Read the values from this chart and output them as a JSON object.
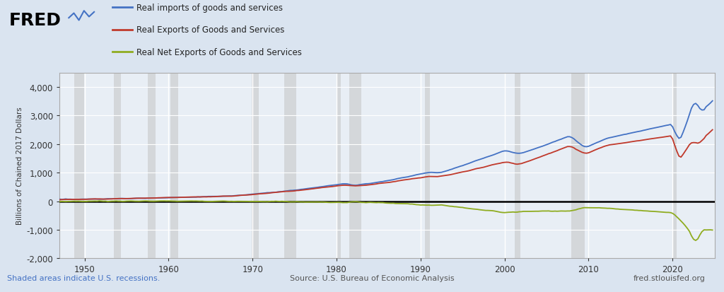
{
  "ylabel": "Billions of Chained 2017 Dollars",
  "background_color": "#dae4f0",
  "plot_background": "#e8eef5",
  "grid_color": "#ffffff",
  "imports_color": "#4472c4",
  "exports_color": "#c0392b",
  "netexports_color": "#8fac20",
  "zero_line_color": "#000000",
  "legend_labels": [
    "Real imports of goods and services",
    "Real Exports of Goods and Services",
    "Real Net Exports of Goods and Services"
  ],
  "source_text": "Source: U.S. Bureau of Economic Analysis",
  "fred_text": "fred.stlouisfed.org",
  "shaded_text": "Shaded areas indicate U.S. recessions.",
  "recession_color": "#c8c8c8",
  "recession_alpha": 0.6,
  "recessions": [
    [
      1948.75,
      1949.92
    ],
    [
      1953.5,
      1954.33
    ],
    [
      1957.5,
      1958.42
    ],
    [
      1960.25,
      1961.17
    ],
    [
      1969.92,
      1970.75
    ],
    [
      1973.75,
      1975.17
    ],
    [
      1980.0,
      1980.5
    ],
    [
      1981.5,
      1982.92
    ],
    [
      1990.5,
      1991.08
    ],
    [
      2001.17,
      2001.92
    ],
    [
      2007.92,
      2009.5
    ],
    [
      2020.0,
      2020.5
    ]
  ],
  "xlim": [
    1947,
    2025
  ],
  "ylim": [
    -2000,
    4500
  ],
  "yticks": [
    -2000,
    -1000,
    0,
    1000,
    2000,
    3000,
    4000
  ],
  "xticks": [
    1950,
    1960,
    1970,
    1980,
    1990,
    2000,
    2010,
    2020
  ]
}
